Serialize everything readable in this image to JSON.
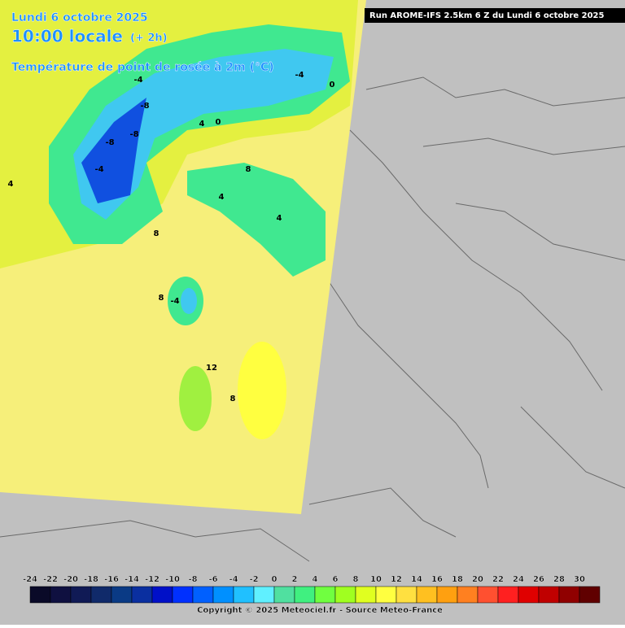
{
  "header": {
    "date": "Lundi 6 octobre 2025",
    "time": "10:00 locale",
    "offset": "(+ 2h)",
    "variable": "Température de point de rosée à 2m (°C)"
  },
  "run_info": "Run AROME-IFS 2.5km 6 Z du Lundi 6 octobre 2025",
  "legend": {
    "labels": [
      "-24",
      "-22",
      "-20",
      "-18",
      "-16",
      "-14",
      "-12",
      "-10",
      "-8",
      "-6",
      "-4",
      "-2",
      "0",
      "2",
      "4",
      "6",
      "8",
      "10",
      "12",
      "14",
      "16",
      "18",
      "20",
      "22",
      "24",
      "26",
      "28",
      "30"
    ],
    "colors": [
      "#0a0a28",
      "#0f1040",
      "#101a55",
      "#102a6a",
      "#0a3a85",
      "#0a2fa0",
      "#0010c8",
      "#0030ff",
      "#0060ff",
      "#0090ff",
      "#20c0ff",
      "#60f0ff",
      "#50e0a0",
      "#40f080",
      "#70ff40",
      "#a0ff20",
      "#e0ff20",
      "#ffff40",
      "#ffe040",
      "#ffc020",
      "#ffa010",
      "#ff8020",
      "#ff5030",
      "#ff2020",
      "#e00000",
      "#c00000",
      "#900000",
      "#600000"
    ]
  },
  "contour_labels": [
    "-4",
    "-8",
    "-8",
    "-8",
    "-4",
    "0",
    "4",
    "0",
    "-4",
    "4",
    "8",
    "4",
    "8",
    "8",
    "12",
    "8",
    "4",
    "-4"
  ],
  "footer": {
    "copyright": "Copyright © 2025 Meteociel.fr - Source Meteo-France"
  }
}
